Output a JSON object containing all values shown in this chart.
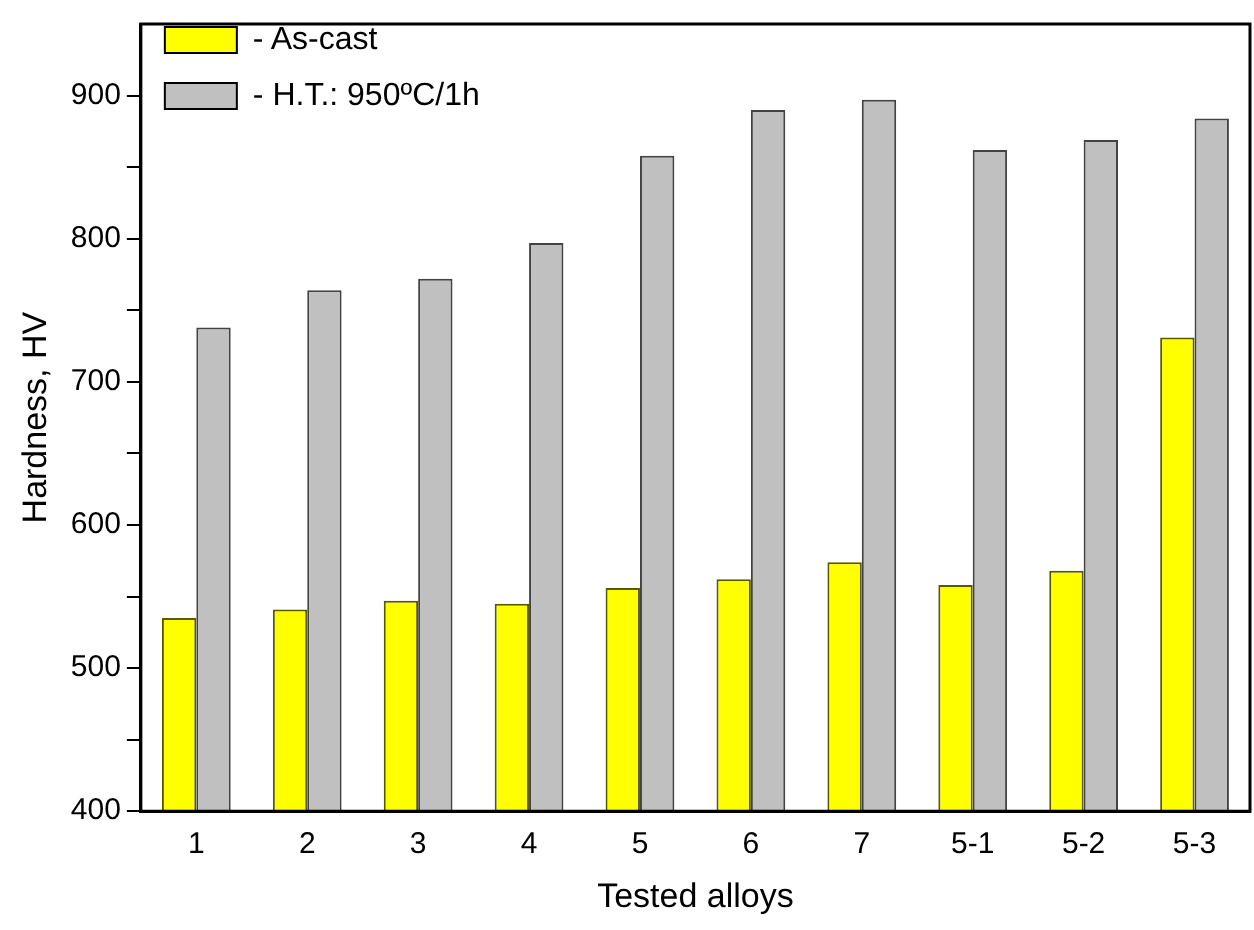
{
  "chart_data": {
    "type": "bar",
    "xlabel": "Tested alloys",
    "ylabel": "Hardness, HV",
    "categories": [
      "1",
      "2",
      "3",
      "4",
      "5",
      "6",
      "7",
      "5-1",
      "5-2",
      "5-3"
    ],
    "series": [
      {
        "name": "- As-cast",
        "color": "#ffff00",
        "values": [
          535,
          541,
          547,
          545,
          556,
          562,
          574,
          558,
          568,
          731
        ]
      },
      {
        "name": "- H.T.: 950ºC/1h",
        "color": "#c0c0c0",
        "values": [
          738,
          764,
          772,
          797,
          858,
          890,
          897,
          862,
          869,
          884
        ]
      }
    ],
    "ylim": [
      400,
      950
    ],
    "yticks": [
      400,
      {
        "value": 450,
        "label": null
      },
      500,
      {
        "value": 550,
        "label": null
      },
      600,
      {
        "value": 650,
        "label": null
      },
      700,
      {
        "value": 750,
        "label": null
      },
      800,
      {
        "value": 850,
        "label": null
      },
      900
    ],
    "grid": false,
    "legend": "top left"
  }
}
